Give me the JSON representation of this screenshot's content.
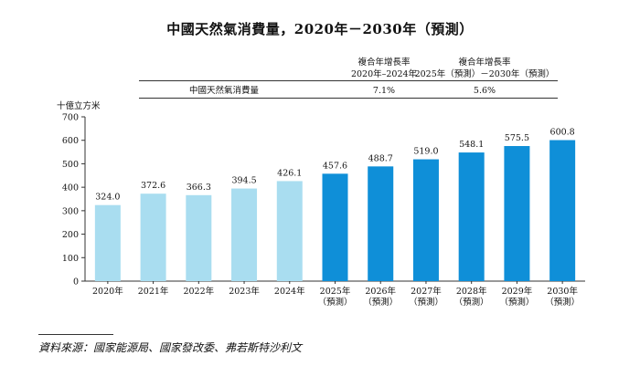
{
  "chart_data": {
    "type": "bar",
    "title": "中國天然氣消費量，2020年－2030年（預測）",
    "ylabel": "十億立方米",
    "ylim": [
      0,
      700
    ],
    "yticks": [
      0,
      100,
      200,
      300,
      400,
      500,
      600,
      700
    ],
    "categories": [
      "2020年",
      "2021年",
      "2022年",
      "2023年",
      "2024年",
      "2025年",
      "2026年",
      "2027年",
      "2028年",
      "2029年",
      "2030年"
    ],
    "forecast_label": "（預測）",
    "values": [
      324.0,
      372.6,
      366.3,
      394.5,
      426.1,
      457.6,
      488.7,
      519.0,
      548.1,
      575.5,
      600.8
    ],
    "value_labels": [
      "324.0",
      "372.6",
      "366.3",
      "394.5",
      "426.1",
      "457.6",
      "488.7",
      "519.0",
      "548.1",
      "575.5",
      "600.8"
    ],
    "forecast": [
      false,
      false,
      false,
      false,
      false,
      true,
      true,
      true,
      true,
      true,
      true
    ],
    "colors": {
      "historical": "#a9ddf0",
      "forecast": "#0f8fd8"
    }
  },
  "cagr_table": {
    "col1_line1": "複合年增長率",
    "col1_line2": "2020年–2024年",
    "col2_line1": "複合年增長率",
    "col2_line2": "2025年（預測）－2030年（預測）",
    "row_label": "中國天然氣消費量",
    "col1_value": "7.1%",
    "col2_value": "5.6%"
  },
  "source": "資料來源：國家能源局、國家發改委、弗若斯特沙利文"
}
